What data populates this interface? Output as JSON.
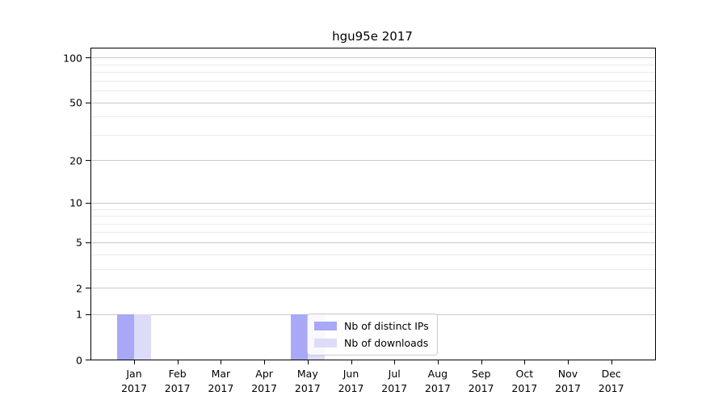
{
  "page": {
    "background": "#ffffff"
  },
  "chart_data": {
    "type": "bar",
    "title": "hgu95e 2017",
    "xlabel": "",
    "ylabel": "",
    "categories": [
      "Jan",
      "Feb",
      "Mar",
      "Apr",
      "May",
      "Jun",
      "Jul",
      "Aug",
      "Sep",
      "Oct",
      "Nov",
      "Dec"
    ],
    "x_tick_year": "2017",
    "series": [
      {
        "name": "Nb of distinct IPs",
        "color": "#a8a8f6",
        "values": [
          1,
          0,
          0,
          0,
          1,
          0,
          0,
          0,
          0,
          0,
          0,
          0
        ]
      },
      {
        "name": "Nb of downloads",
        "color": "#dcdcf8",
        "values": [
          1,
          0,
          0,
          0,
          1,
          0,
          0,
          0,
          0,
          0,
          0,
          0
        ]
      }
    ],
    "y_axis": {
      "scale": "log1p",
      "ylim": [
        0,
        115
      ],
      "major_ticks": [
        0,
        1,
        2,
        5,
        10,
        20,
        50,
        100
      ],
      "minor_gridlines": [
        3,
        4,
        6,
        7,
        8,
        9,
        30,
        40,
        60,
        70,
        80,
        90
      ]
    },
    "grid": {
      "on": true,
      "major_color": "#c9c9c9",
      "minor_color": "#ebebeb"
    },
    "legend": {
      "position": "lower center",
      "border_color": "#cccccc"
    },
    "axis_color": "#000000"
  }
}
